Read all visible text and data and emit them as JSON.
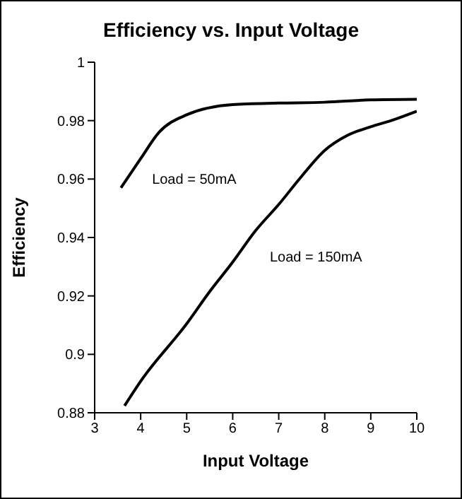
{
  "chart_data": {
    "type": "line",
    "title": "Efficiency vs. Input Voltage",
    "xlabel": "Input Voltage",
    "ylabel": "Efficiency",
    "xlim": [
      3,
      10
    ],
    "xticks": [
      3,
      4,
      5,
      6,
      7,
      8,
      9,
      10
    ],
    "ylim": [
      0.88,
      1
    ],
    "yticks": [
      0.88,
      0.9,
      0.92,
      0.94,
      0.96,
      0.98,
      1
    ],
    "grid": false,
    "legend": false,
    "marker": "none",
    "line_style": "solid",
    "series": [
      {
        "name": "Load = 50mA",
        "color": "#000000",
        "x": [
          3.57,
          4,
          4.4,
          5,
          6,
          7,
          8,
          9,
          10
        ],
        "values": [
          0.957,
          0.967,
          0.976,
          0.982,
          0.9855,
          0.986,
          0.9863,
          0.9871,
          0.9873
        ]
      },
      {
        "name": "Load = 150mA",
        "color": "#000000",
        "x": [
          3.65,
          4,
          5,
          5.5,
          6,
          6.5,
          7,
          7.5,
          8,
          8.5,
          9,
          9.5,
          10
        ],
        "values": [
          0.8824,
          0.8908,
          0.9105,
          0.9215,
          0.9316,
          0.9424,
          0.9513,
          0.961,
          0.9698,
          0.975,
          0.9779,
          0.9803,
          0.9832
        ]
      }
    ]
  }
}
